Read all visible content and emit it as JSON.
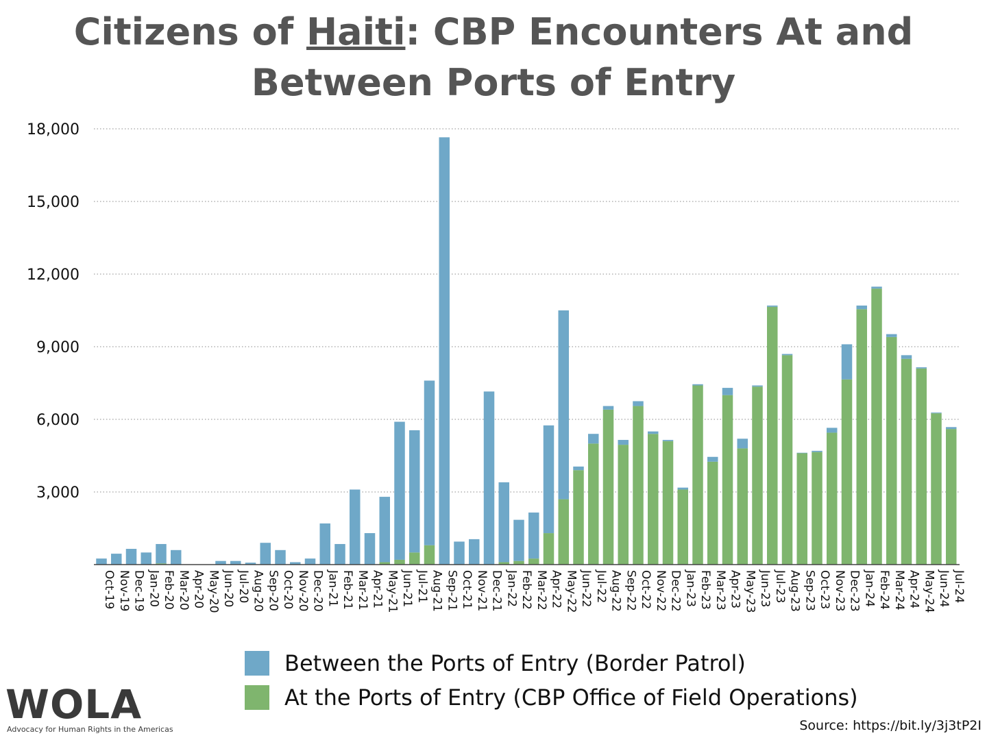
{
  "title": {
    "before": "Citizens of ",
    "haiti": "Haiti",
    "after": ": CBP Encounters At and Between Ports of Entry"
  },
  "legend": [
    {
      "label": "Between the Ports of Entry (Border Patrol)",
      "color": "#6fa8c8"
    },
    {
      "label": "At the Ports of Entry (CBP Office of Field Operations)",
      "color": "#7fb56e"
    }
  ],
  "logo": {
    "text": "WOLA",
    "tagline": "Advocacy for Human Rights in the Americas"
  },
  "source": "Source: https://bit.ly/3j3tP2I",
  "chart_data": {
    "type": "bar",
    "stacked": true,
    "title": "Citizens of Haiti: CBP Encounters At and Between Ports of Entry",
    "ylim": [
      0,
      18000
    ],
    "yticks": [
      "3,000",
      "6,000",
      "9,000",
      "12,000",
      "15,000",
      "18,000"
    ],
    "ytick_values": [
      3000,
      6000,
      9000,
      12000,
      15000,
      18000
    ],
    "grid": true,
    "legend_position": "bottom",
    "categories": [
      "Oct-19",
      "Nov-19",
      "Dec-19",
      "Jan-20",
      "Feb-20",
      "Mar-20",
      "Apr-20",
      "May-20",
      "Jun-20",
      "Jul-20",
      "Aug-20",
      "Sep-20",
      "Oct-20",
      "Nov-20",
      "Dec-20",
      "Jan-21",
      "Feb-21",
      "Mar-21",
      "Apr-21",
      "May-21",
      "Jun-21",
      "Jul-21",
      "Aug-21",
      "Sep-21",
      "Oct-21",
      "Nov-21",
      "Dec-21",
      "Jan-22",
      "Feb-22",
      "Mar-22",
      "Apr-22",
      "May-22",
      "Jun-22",
      "Jul-22",
      "Aug-22",
      "Sep-22",
      "Oct-22",
      "Nov-22",
      "Dec-22",
      "Jan-23",
      "Feb-23",
      "Mar-23",
      "Apr-23",
      "May-23",
      "Jun-23",
      "Jul-23",
      "Aug-23",
      "Sep-23",
      "Oct-23",
      "Nov-23",
      "Dec-23",
      "Jan-24",
      "Feb-24",
      "Mar-24",
      "Apr-24",
      "May-24",
      "Jun-24",
      "Jul-24"
    ],
    "series": [
      {
        "name": "At the Ports of Entry (CBP Office of Field Operations)",
        "color": "#7fb56e",
        "values": [
          0,
          0,
          0,
          0,
          50,
          0,
          0,
          0,
          0,
          0,
          0,
          0,
          0,
          0,
          0,
          0,
          0,
          0,
          0,
          100,
          200,
          500,
          800,
          0,
          0,
          0,
          0,
          100,
          150,
          250,
          1300,
          2700,
          3900,
          5000,
          6400,
          4950,
          6550,
          5400,
          5100,
          3100,
          7400,
          4250,
          7000,
          4800,
          7350,
          10650,
          8650,
          4600,
          4650,
          5450,
          7650,
          10550,
          11400,
          9400,
          8500,
          8100,
          6250,
          5600
        ]
      },
      {
        "name": "Between the Ports of Entry (Border Patrol)",
        "color": "#6fa8c8",
        "values": [
          250,
          450,
          650,
          500,
          800,
          600,
          0,
          0,
          150,
          150,
          80,
          900,
          600,
          100,
          250,
          1700,
          850,
          3100,
          1300,
          2700,
          5700,
          5050,
          6800,
          17650,
          950,
          1050,
          7150,
          3300,
          1700,
          1900,
          4450,
          7800,
          150,
          400,
          150,
          200,
          200,
          100,
          50,
          80,
          50,
          200,
          300,
          400,
          50,
          50,
          50,
          20,
          50,
          200,
          1450,
          150,
          80,
          120,
          150,
          50,
          30,
          80
        ]
      }
    ]
  }
}
